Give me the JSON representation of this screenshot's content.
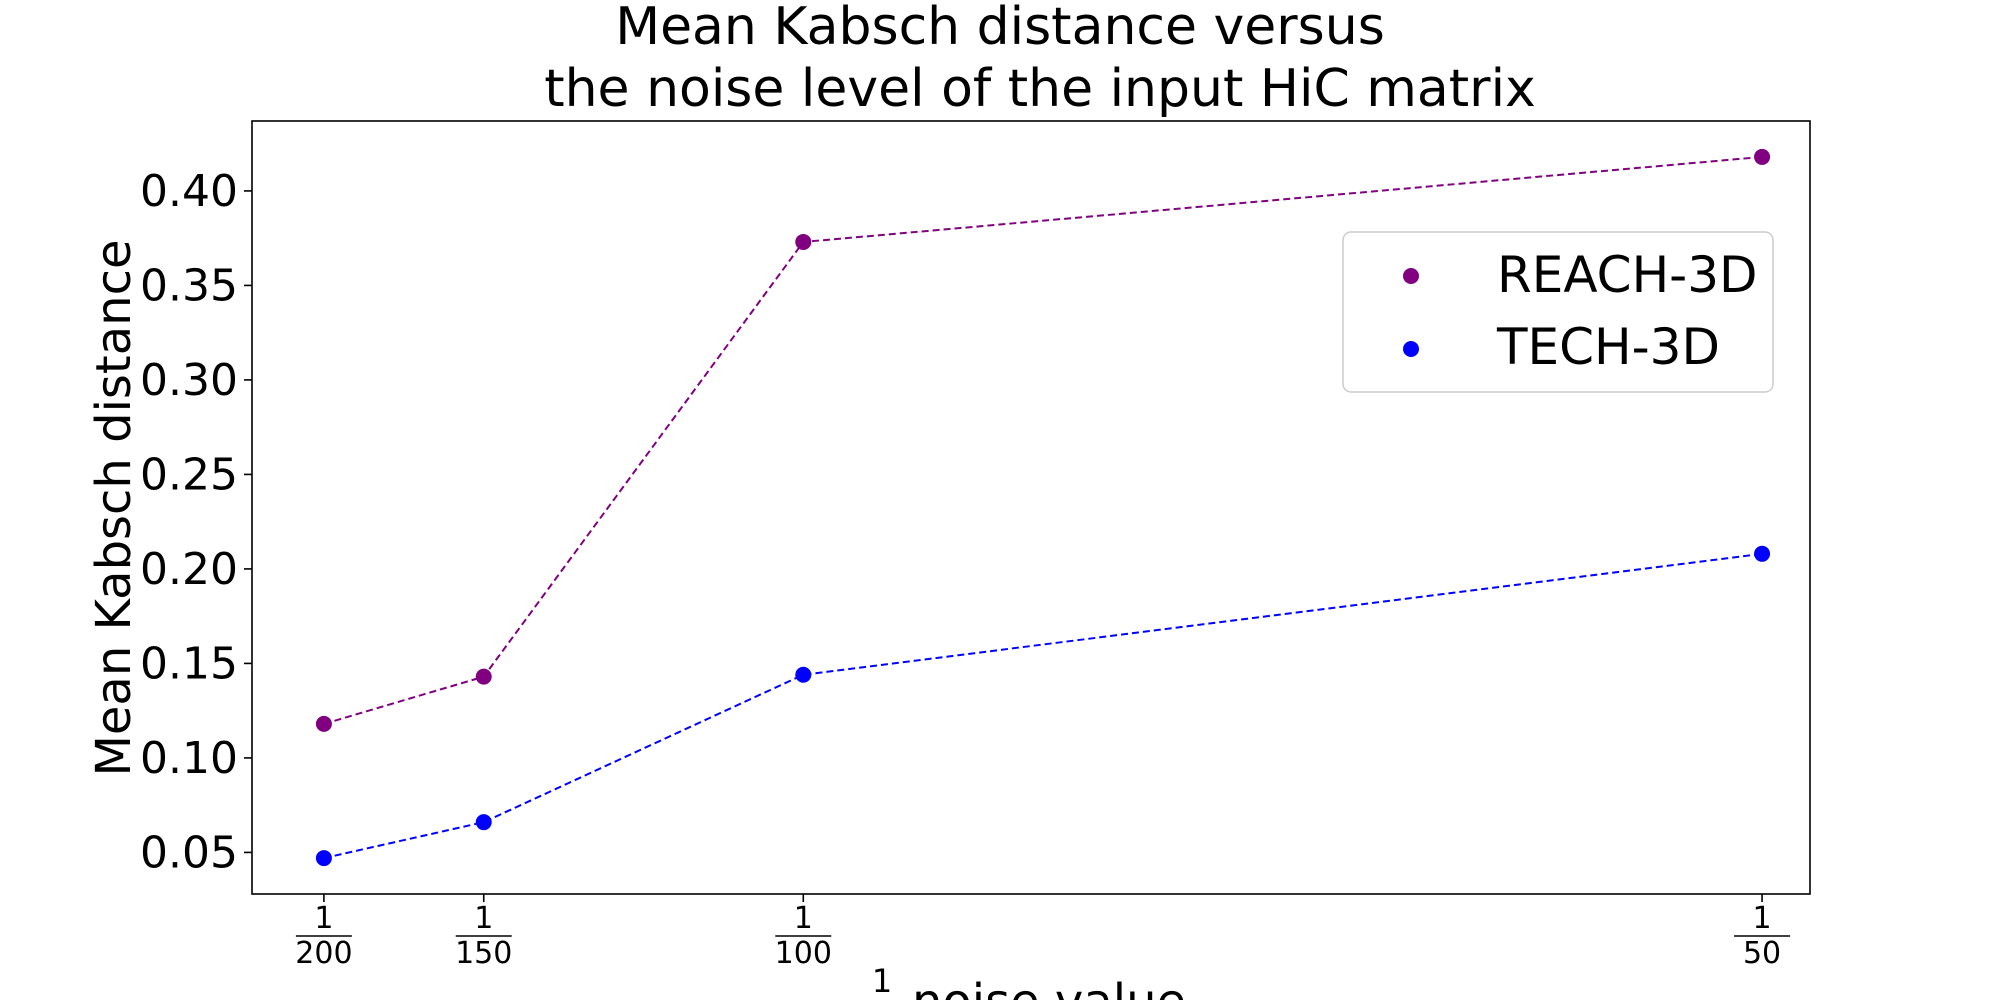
{
  "chart_data": {
    "type": "line",
    "title_line1": "Mean Kabsch distance versus",
    "title_line2": "the noise level of the input HiC matrix",
    "ylabel": "Mean Kabsch distance",
    "xlabel_numerator": "1",
    "xlabel_text": "noise value",
    "x": [
      0.005,
      0.006667,
      0.01,
      0.02
    ],
    "x_tick_labels": [
      {
        "num": "1",
        "den": "200"
      },
      {
        "num": "1",
        "den": "150"
      },
      {
        "num": "1",
        "den": "100"
      },
      {
        "num": "1",
        "den": "50"
      }
    ],
    "xlim": [
      0.00425,
      0.0205
    ],
    "ylim": [
      0.028,
      0.437
    ],
    "y_ticks": [
      0.05,
      0.1,
      0.15,
      0.2,
      0.25,
      0.3,
      0.35,
      0.4
    ],
    "y_tick_labels": [
      "0.05",
      "0.10",
      "0.15",
      "0.20",
      "0.25",
      "0.30",
      "0.35",
      "0.40"
    ],
    "series": [
      {
        "name": "REACH-3D",
        "color": "#800080",
        "values": [
          0.118,
          0.143,
          0.373,
          0.418
        ]
      },
      {
        "name": "TECH-3D",
        "color": "#0000ff",
        "values": [
          0.047,
          0.066,
          0.144,
          0.208
        ]
      }
    ],
    "line_style": "dashed",
    "marker": "circle",
    "grid": false,
    "legend_position": "upper-right"
  }
}
